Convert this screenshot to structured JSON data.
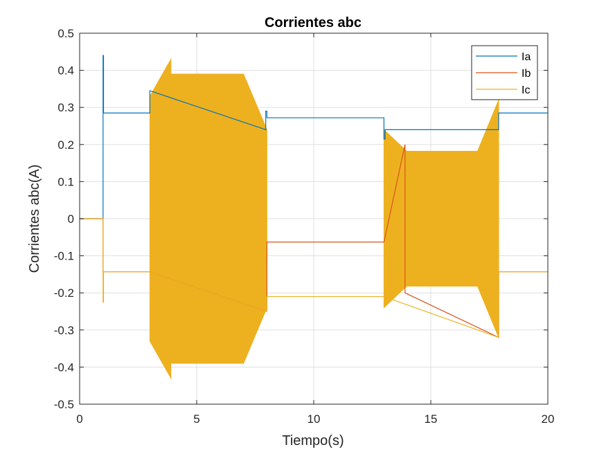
{
  "chart_data": {
    "type": "line",
    "title": "Corrientes abc",
    "xlabel": "Tiempo(s)",
    "ylabel": "Corrientes abc(A)",
    "xlim": [
      0,
      20
    ],
    "ylim": [
      -0.5,
      0.5
    ],
    "xticks": [
      "0",
      "5",
      "10",
      "15",
      "20"
    ],
    "yticks": [
      "0.5",
      "0.4",
      "0.3",
      "0.2",
      "0.1",
      "0",
      "-0.1",
      "-0.2",
      "-0.3",
      "-0.4",
      "-0.5"
    ],
    "grid": true,
    "legend_position": "top-right",
    "series": [
      {
        "name": "Ia",
        "color": "#0072BD",
        "x": [
          0,
          1,
          1,
          1.02,
          1.02,
          3.0,
          3.0,
          7.95,
          7.95,
          8.0,
          8.0,
          13.0,
          13.0,
          13.05,
          13.05,
          17.9,
          17.9,
          20
        ],
        "y": [
          0,
          0,
          0.44,
          0.44,
          0.285,
          0.285,
          0.345,
          0.24,
          0.29,
          0.29,
          0.272,
          0.272,
          0.215,
          0.215,
          0.24,
          0.24,
          0.285,
          0.285
        ]
      },
      {
        "name": "Ib",
        "color": "#D95319",
        "x": [
          0,
          1,
          1,
          3.0,
          8.0,
          8.0,
          13.0,
          13.9,
          13.9,
          17.9,
          17.9,
          20
        ],
        "y": [
          0,
          0,
          -0.143,
          -0.143,
          -0.25,
          -0.063,
          -0.063,
          0.2,
          -0.2,
          -0.32,
          -0.143,
          -0.143
        ]
      },
      {
        "name": "Ic",
        "color": "#EDB120",
        "x": [
          0,
          1,
          1,
          1.02,
          1.02,
          3.0,
          8.0,
          8.0,
          13.0,
          17.9,
          17.9,
          20
        ],
        "y": [
          0,
          0,
          -0.225,
          -0.225,
          -0.143,
          -0.143,
          -0.25,
          -0.21,
          -0.21,
          -0.32,
          -0.143,
          -0.143
        ]
      }
    ],
    "bands": [
      {
        "series": "Ic",
        "color": "#EDB120",
        "upper_x": [
          3.0,
          3.9,
          3.9,
          7.0,
          8.0
        ],
        "upper_y": [
          0.33,
          0.43,
          0.39,
          0.39,
          0.24
        ],
        "lower_x": [
          3.0,
          3.9,
          3.9,
          7.0,
          8.0
        ],
        "lower_y": [
          -0.33,
          -0.43,
          -0.39,
          -0.39,
          -0.24
        ]
      },
      {
        "series": "Ic",
        "color": "#EDB120",
        "upper_x": [
          13.0,
          14.0,
          14.0,
          17.0,
          17.9
        ],
        "upper_y": [
          0.24,
          0.18,
          0.182,
          0.182,
          0.32
        ],
        "lower_x": [
          13.0,
          14.0,
          14.0,
          17.0,
          17.9
        ],
        "lower_y": [
          -0.24,
          -0.18,
          -0.182,
          -0.182,
          -0.32
        ]
      }
    ]
  }
}
